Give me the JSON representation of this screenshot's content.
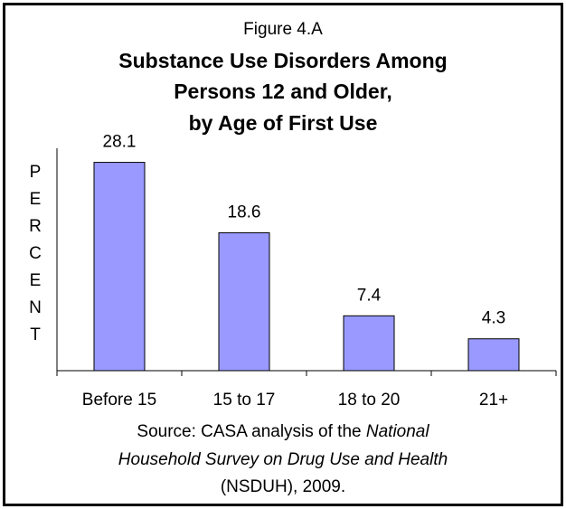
{
  "figure_label": "Figure 4.A",
  "title_lines": [
    "Substance Use Disorders Among",
    "Persons 12 and Older,",
    "by Age of First Use"
  ],
  "ylabel_letters": [
    "P",
    "E",
    "R",
    "C",
    "E",
    "N",
    "T"
  ],
  "source": {
    "line1_prefix": "Source:  CASA analysis of the ",
    "line1_italic": "National",
    "line2_italic": "Household Survey on Drug Use and Health",
    "line3": "(NSDUH), 2009."
  },
  "colors": {
    "bar_fill": "#9999ff",
    "bar_stroke": "#000000",
    "axis": "#000000",
    "border": "#000000"
  },
  "chart_data": {
    "type": "bar",
    "categories": [
      "Before 15",
      "15 to 17",
      "18 to 20",
      "21+"
    ],
    "values": [
      28.1,
      18.6,
      7.4,
      4.3
    ],
    "data_labels": [
      "28.1",
      "18.6",
      "7.4",
      "4.3"
    ],
    "title": "Substance Use Disorders Among Persons 12 and Older, by Age of First Use",
    "xlabel": "",
    "ylabel": "PERCENT",
    "ylim": [
      0,
      30
    ],
    "grid": false,
    "legend": "none"
  }
}
